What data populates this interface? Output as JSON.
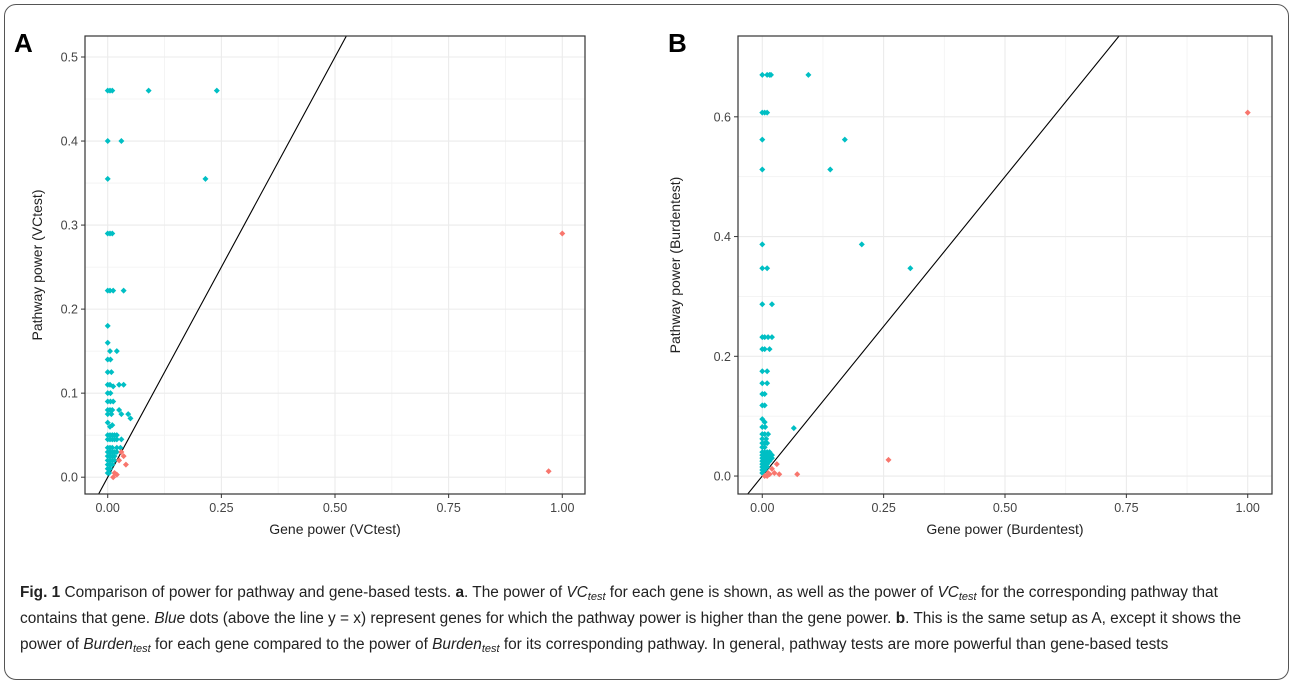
{
  "colors": {
    "above": "#00bfc4",
    "below": "#f8766d",
    "line": "#000000",
    "grid": "#ebebeb",
    "panel_border": "#333333"
  },
  "caption": {
    "fig_label": "Fig. 1",
    "title": " Comparison of power for pathway and gene-based tests. ",
    "a_label": "a",
    "s1": ". The power of ",
    "vc": "VC",
    "test": "test",
    "s2": " for each gene is shown, as well as the power of ",
    "s3": " for the corresponding pathway that contains that gene. ",
    "blue": "Blue",
    "s4": " dots (above the line y = x) represent genes for which the pathway power is higher than the gene power. ",
    "b_label": "b",
    "s5": ". This is the same setup as A, except it shows the power of ",
    "burden": "Burden",
    "s6": " for each gene compared to the power of ",
    "s7": " for its corresponding pathway. In general, pathway tests are more powerful than gene-based tests"
  },
  "chart_data": [
    {
      "type": "scatter",
      "panel_label": "A",
      "xlabel": "Gene power (VCtest)",
      "ylabel": "Pathway power (VCtest)",
      "xlim": [
        -0.05,
        1.05
      ],
      "ylim": [
        -0.02,
        0.525
      ],
      "xticks": [
        0.0,
        0.25,
        0.5,
        0.75,
        1.0
      ],
      "xtick_labels": [
        "0.00",
        "0.25",
        "0.50",
        "0.75",
        "1.00"
      ],
      "yticks": [
        0.0,
        0.1,
        0.2,
        0.3,
        0.4,
        0.5
      ],
      "ytick_labels": [
        "0.0",
        "0.1",
        "0.2",
        "0.3",
        "0.4",
        "0.5"
      ],
      "reference_line": "y = x",
      "grid": true,
      "series": [
        {
          "color": "above",
          "points": [
            [
              0.0,
              0.46
            ],
            [
              0.005,
              0.46
            ],
            [
              0.01,
              0.46
            ],
            [
              0.09,
              0.46
            ],
            [
              0.24,
              0.46
            ],
            [
              0.0,
              0.4
            ],
            [
              0.03,
              0.4
            ],
            [
              0.0,
              0.355
            ],
            [
              0.215,
              0.355
            ],
            [
              0.0,
              0.29
            ],
            [
              0.005,
              0.29
            ],
            [
              0.01,
              0.29
            ],
            [
              0.0,
              0.222
            ],
            [
              0.005,
              0.222
            ],
            [
              0.012,
              0.222
            ],
            [
              0.035,
              0.222
            ],
            [
              0.0,
              0.18
            ],
            [
              0.0,
              0.16
            ],
            [
              0.005,
              0.15
            ],
            [
              0.02,
              0.15
            ],
            [
              0.0,
              0.14
            ],
            [
              0.006,
              0.14
            ],
            [
              0.0,
              0.125
            ],
            [
              0.008,
              0.125
            ],
            [
              0.0,
              0.11
            ],
            [
              0.005,
              0.11
            ],
            [
              0.012,
              0.108
            ],
            [
              0.025,
              0.11
            ],
            [
              0.035,
              0.11
            ],
            [
              0.0,
              0.1
            ],
            [
              0.006,
              0.1
            ],
            [
              0.0,
              0.09
            ],
            [
              0.006,
              0.09
            ],
            [
              0.012,
              0.09
            ],
            [
              0.0,
              0.08
            ],
            [
              0.005,
              0.08
            ],
            [
              0.01,
              0.08
            ],
            [
              0.025,
              0.08
            ],
            [
              0.0,
              0.075
            ],
            [
              0.008,
              0.075
            ],
            [
              0.03,
              0.075
            ],
            [
              0.045,
              0.075
            ],
            [
              0.05,
              0.07
            ],
            [
              0.0,
              0.065
            ],
            [
              0.005,
              0.06
            ],
            [
              0.01,
              0.062
            ],
            [
              0.0,
              0.05
            ],
            [
              0.005,
              0.05
            ],
            [
              0.01,
              0.05
            ],
            [
              0.015,
              0.05
            ],
            [
              0.02,
              0.05
            ],
            [
              0.0,
              0.045
            ],
            [
              0.005,
              0.045
            ],
            [
              0.01,
              0.045
            ],
            [
              0.015,
              0.045
            ],
            [
              0.02,
              0.045
            ],
            [
              0.03,
              0.045
            ],
            [
              0.0,
              0.035
            ],
            [
              0.005,
              0.035
            ],
            [
              0.01,
              0.035
            ],
            [
              0.02,
              0.035
            ],
            [
              0.028,
              0.035
            ],
            [
              0.0,
              0.03
            ],
            [
              0.005,
              0.03
            ],
            [
              0.01,
              0.03
            ],
            [
              0.015,
              0.03
            ],
            [
              0.02,
              0.03
            ],
            [
              0.0,
              0.025
            ],
            [
              0.005,
              0.025
            ],
            [
              0.01,
              0.025
            ],
            [
              0.015,
              0.025
            ],
            [
              0.0,
              0.02
            ],
            [
              0.005,
              0.02
            ],
            [
              0.01,
              0.02
            ],
            [
              0.015,
              0.02
            ],
            [
              0.0,
              0.015
            ],
            [
              0.005,
              0.015
            ],
            [
              0.01,
              0.015
            ],
            [
              0.0,
              0.01
            ],
            [
              0.005,
              0.01
            ],
            [
              0.0,
              0.005
            ],
            [
              0.003,
              0.005
            ]
          ]
        },
        {
          "color": "below",
          "points": [
            [
              0.97,
              0.007
            ],
            [
              1.0,
              0.29
            ],
            [
              0.04,
              0.015
            ],
            [
              0.03,
              0.03
            ],
            [
              0.025,
              0.02
            ],
            [
              0.015,
              0.005
            ],
            [
              0.012,
              0.0
            ],
            [
              0.02,
              0.003
            ],
            [
              0.035,
              0.025
            ]
          ]
        }
      ]
    },
    {
      "type": "scatter",
      "panel_label": "B",
      "xlabel": "Gene power (Burdentest)",
      "ylabel": "Pathway power (Burdentest)",
      "xlim": [
        -0.05,
        1.05
      ],
      "ylim": [
        -0.03,
        0.735
      ],
      "xticks": [
        0.0,
        0.25,
        0.5,
        0.75,
        1.0
      ],
      "xtick_labels": [
        "0.00",
        "0.25",
        "0.50",
        "0.75",
        "1.00"
      ],
      "yticks": [
        0.0,
        0.2,
        0.4,
        0.6
      ],
      "ytick_labels": [
        "0.0",
        "0.2",
        "0.4",
        "0.6"
      ],
      "reference_line": "y = x",
      "grid": true,
      "series": [
        {
          "color": "above",
          "points": [
            [
              0.0,
              0.67
            ],
            [
              0.01,
              0.67
            ],
            [
              0.015,
              0.67
            ],
            [
              0.018,
              0.67
            ],
            [
              0.095,
              0.67
            ],
            [
              0.0,
              0.607
            ],
            [
              0.005,
              0.607
            ],
            [
              0.01,
              0.607
            ],
            [
              0.17,
              0.562
            ],
            [
              0.0,
              0.562
            ],
            [
              0.14,
              0.512
            ],
            [
              0.0,
              0.512
            ],
            [
              0.205,
              0.387
            ],
            [
              0.0,
              0.387
            ],
            [
              0.0,
              0.347
            ],
            [
              0.01,
              0.347
            ],
            [
              0.305,
              0.347
            ],
            [
              0.0,
              0.287
            ],
            [
              0.02,
              0.287
            ],
            [
              0.0,
              0.232
            ],
            [
              0.005,
              0.232
            ],
            [
              0.012,
              0.232
            ],
            [
              0.02,
              0.232
            ],
            [
              0.0,
              0.212
            ],
            [
              0.005,
              0.212
            ],
            [
              0.015,
              0.212
            ],
            [
              0.0,
              0.175
            ],
            [
              0.01,
              0.175
            ],
            [
              0.0,
              0.155
            ],
            [
              0.01,
              0.155
            ],
            [
              0.0,
              0.137
            ],
            [
              0.005,
              0.137
            ],
            [
              0.0,
              0.118
            ],
            [
              0.005,
              0.118
            ],
            [
              0.0,
              0.095
            ],
            [
              0.005,
              0.09
            ],
            [
              0.0,
              0.082
            ],
            [
              0.006,
              0.082
            ],
            [
              0.065,
              0.08
            ],
            [
              0.0,
              0.07
            ],
            [
              0.005,
              0.07
            ],
            [
              0.012,
              0.07
            ],
            [
              0.0,
              0.062
            ],
            [
              0.008,
              0.062
            ],
            [
              0.0,
              0.055
            ],
            [
              0.005,
              0.055
            ],
            [
              0.01,
              0.055
            ],
            [
              0.0,
              0.048
            ],
            [
              0.005,
              0.048
            ],
            [
              0.0,
              0.04
            ],
            [
              0.005,
              0.04
            ],
            [
              0.01,
              0.04
            ],
            [
              0.015,
              0.04
            ],
            [
              0.0,
              0.035
            ],
            [
              0.005,
              0.035
            ],
            [
              0.01,
              0.035
            ],
            [
              0.015,
              0.035
            ],
            [
              0.02,
              0.035
            ],
            [
              0.0,
              0.03
            ],
            [
              0.005,
              0.03
            ],
            [
              0.01,
              0.03
            ],
            [
              0.015,
              0.03
            ],
            [
              0.02,
              0.03
            ],
            [
              0.0,
              0.025
            ],
            [
              0.005,
              0.025
            ],
            [
              0.01,
              0.025
            ],
            [
              0.015,
              0.025
            ],
            [
              0.0,
              0.02
            ],
            [
              0.005,
              0.02
            ],
            [
              0.01,
              0.02
            ],
            [
              0.0,
              0.015
            ],
            [
              0.005,
              0.015
            ],
            [
              0.01,
              0.015
            ],
            [
              0.0,
              0.01
            ],
            [
              0.005,
              0.01
            ],
            [
              0.0,
              0.005
            ]
          ]
        },
        {
          "color": "below",
          "points": [
            [
              1.0,
              0.607
            ],
            [
              0.26,
              0.027
            ],
            [
              0.072,
              0.003
            ],
            [
              0.035,
              0.003
            ],
            [
              0.03,
              0.02
            ],
            [
              0.02,
              0.012
            ],
            [
              0.025,
              0.005
            ],
            [
              0.015,
              0.003
            ],
            [
              0.005,
              0.0
            ],
            [
              0.012,
              0.005
            ],
            [
              0.01,
              0.0
            ]
          ]
        }
      ]
    }
  ]
}
